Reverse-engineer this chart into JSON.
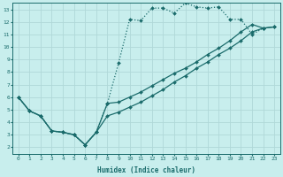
{
  "xlabel": "Humidex (Indice chaleur)",
  "xlim": [
    -0.5,
    23.5
  ],
  "ylim": [
    1.5,
    13.5
  ],
  "xticks": [
    0,
    1,
    2,
    3,
    4,
    5,
    6,
    7,
    8,
    9,
    10,
    11,
    12,
    13,
    14,
    15,
    16,
    17,
    18,
    19,
    20,
    21,
    22,
    23
  ],
  "yticks": [
    2,
    3,
    4,
    5,
    6,
    7,
    8,
    9,
    10,
    11,
    12,
    13
  ],
  "bg_color": "#c8eeed",
  "grid_color": "#b0d8d8",
  "line_color": "#1a6b6b",
  "line1_x": [
    0,
    1,
    2,
    3,
    4,
    5,
    6,
    7,
    8,
    9,
    10,
    11,
    12,
    13,
    14,
    15,
    16,
    17,
    18,
    19,
    20,
    21,
    22
  ],
  "line1_y": [
    6.0,
    4.9,
    4.5,
    3.3,
    3.2,
    3.0,
    2.2,
    3.2,
    5.5,
    8.7,
    12.2,
    12.1,
    13.1,
    13.1,
    12.7,
    13.5,
    13.2,
    13.1,
    13.2,
    12.2,
    12.2,
    11.0,
    11.5
  ],
  "line2_x": [
    0,
    1,
    2,
    3,
    4,
    5,
    6,
    7,
    8,
    9,
    10,
    11,
    12,
    13,
    14,
    15,
    16,
    17,
    18,
    19,
    20,
    21,
    22,
    23
  ],
  "line2_y": [
    6.0,
    4.9,
    4.5,
    3.3,
    3.2,
    3.0,
    2.2,
    3.2,
    5.5,
    5.6,
    6.0,
    6.4,
    6.9,
    7.4,
    7.9,
    8.3,
    8.8,
    9.4,
    9.9,
    10.5,
    11.2,
    11.8,
    11.5,
    11.6
  ],
  "line3_x": [
    0,
    1,
    2,
    3,
    4,
    5,
    6,
    7,
    8,
    9,
    10,
    11,
    12,
    13,
    14,
    15,
    16,
    17,
    18,
    19,
    20,
    21,
    22,
    23
  ],
  "line3_y": [
    6.0,
    4.9,
    4.5,
    3.3,
    3.2,
    3.0,
    2.2,
    3.2,
    4.5,
    4.8,
    5.2,
    5.6,
    6.1,
    6.6,
    7.2,
    7.7,
    8.3,
    8.8,
    9.4,
    9.9,
    10.5,
    11.2,
    11.5,
    11.6
  ]
}
